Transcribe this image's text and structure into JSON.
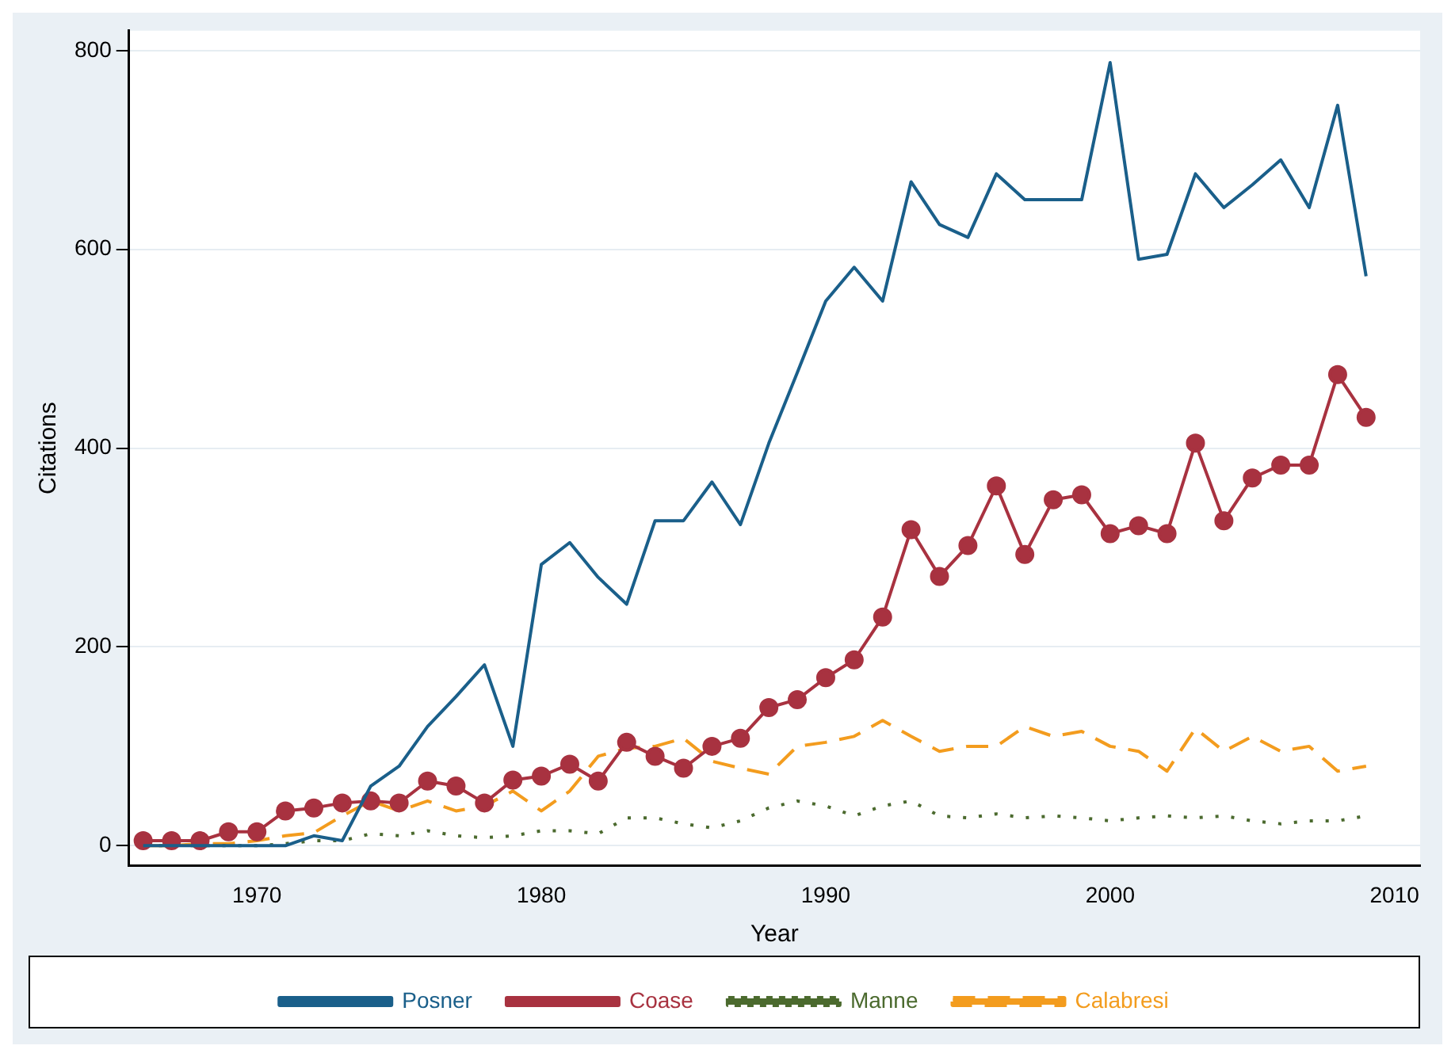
{
  "chart_data": {
    "type": "line",
    "xlabel": "Year",
    "ylabel": "Citations",
    "x": [
      1966,
      1967,
      1968,
      1969,
      1970,
      1971,
      1972,
      1973,
      1974,
      1975,
      1976,
      1977,
      1978,
      1979,
      1980,
      1981,
      1982,
      1983,
      1984,
      1985,
      1986,
      1987,
      1988,
      1989,
      1990,
      1991,
      1992,
      1993,
      1994,
      1995,
      1996,
      1997,
      1998,
      1999,
      2000,
      2001,
      2002,
      2003,
      2004,
      2005,
      2006,
      2007,
      2008,
      2009
    ],
    "xlim": [
      1965.5,
      2010.9
    ],
    "xticks": [
      1970,
      1980,
      1990,
      2000,
      2010
    ],
    "ylim": [
      -20,
      820
    ],
    "yticks": [
      0,
      200,
      400,
      600,
      800
    ],
    "grid": "y",
    "legend": "bottom",
    "series": [
      {
        "name": "Posner",
        "color": "#1a5f8a",
        "line_style": "solid",
        "marker": "none",
        "values": [
          0,
          0,
          0,
          0,
          0,
          0,
          10,
          5,
          60,
          80,
          120,
          150,
          182,
          100,
          283,
          305,
          270,
          243,
          327,
          327,
          366,
          323,
          405,
          476,
          548,
          582,
          548,
          668,
          625,
          612,
          676,
          650,
          650,
          650,
          788,
          590,
          595,
          676,
          642,
          665,
          690,
          642,
          745,
          573
        ]
      },
      {
        "name": "Coase",
        "color": "#a83240",
        "line_style": "solid",
        "marker": "circle",
        "values": [
          5,
          5,
          5,
          14,
          14,
          35,
          38,
          43,
          45,
          43,
          65,
          60,
          43,
          66,
          70,
          82,
          65,
          104,
          90,
          78,
          100,
          108,
          139,
          147,
          169,
          187,
          230,
          318,
          271,
          302,
          362,
          293,
          348,
          353,
          314,
          322,
          314,
          405,
          327,
          370,
          383,
          383,
          474,
          431
        ]
      },
      {
        "name": "Manne",
        "color": "#4b6a2e",
        "line_style": "dotted",
        "marker": "none",
        "values": [
          0,
          0,
          0,
          0,
          0,
          2,
          5,
          5,
          12,
          10,
          15,
          10,
          8,
          10,
          15,
          15,
          12,
          28,
          28,
          22,
          18,
          25,
          38,
          45,
          40,
          30,
          40,
          45,
          30,
          28,
          32,
          28,
          30,
          28,
          25,
          28,
          30,
          28,
          30,
          25,
          22,
          25,
          25,
          30
        ]
      },
      {
        "name": "Calabresi",
        "color": "#f39c1e",
        "line_style": "dashed",
        "marker": "none",
        "values": [
          0,
          0,
          2,
          2,
          5,
          10,
          13,
          30,
          45,
          35,
          45,
          35,
          40,
          55,
          35,
          55,
          90,
          98,
          100,
          108,
          85,
          78,
          72,
          100,
          104,
          110,
          126,
          110,
          95,
          100,
          100,
          120,
          110,
          115,
          100,
          95,
          75,
          118,
          95,
          110,
          95,
          100,
          75,
          80
        ]
      }
    ]
  }
}
